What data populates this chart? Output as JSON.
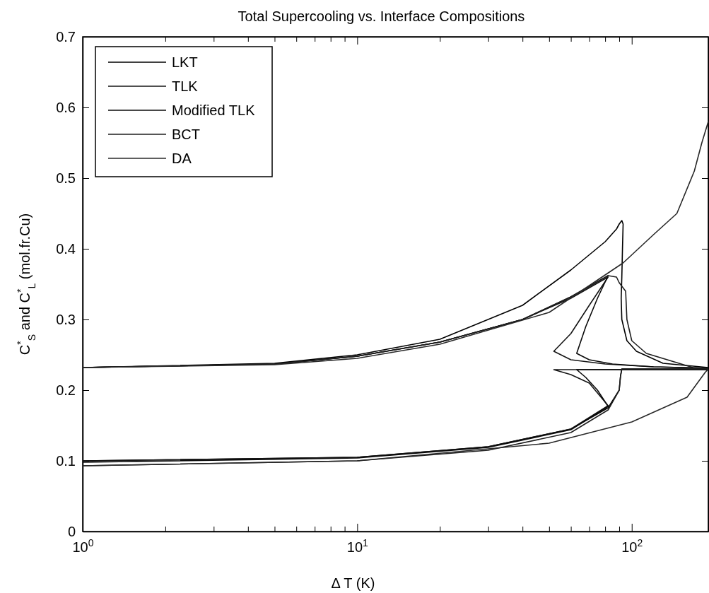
{
  "chart_data": {
    "type": "line",
    "title": "Total Supercooling vs. Interface Compositions",
    "xlabel": "Δ T (K)",
    "ylabel": "C$^{*}$$_{S}$ and C$^{*}$$_{L}$ (mol.fr.Cu)",
    "log": "x",
    "grid": false,
    "legend": "top left",
    "xlim": [
      1,
      190
    ],
    "ylim": [
      0,
      0.7
    ],
    "xticks": [
      {
        "value": 1,
        "label": "10$^{0}$"
      },
      {
        "value": 2,
        "label": null
      },
      {
        "value": 3,
        "label": null
      },
      {
        "value": 4,
        "label": null
      },
      {
        "value": 5,
        "label": null
      },
      {
        "value": 6,
        "label": null
      },
      {
        "value": 7,
        "label": null
      },
      {
        "value": 8,
        "label": null
      },
      {
        "value": 9,
        "label": null
      },
      {
        "value": 10,
        "label": "10$^{1}$"
      },
      {
        "value": 20,
        "label": null
      },
      {
        "value": 30,
        "label": null
      },
      {
        "value": 40,
        "label": null
      },
      {
        "value": 50,
        "label": null
      },
      {
        "value": 60,
        "label": null
      },
      {
        "value": 70,
        "label": null
      },
      {
        "value": 80,
        "label": null
      },
      {
        "value": 90,
        "label": null
      },
      {
        "value": 100,
        "label": "10$^{2}$"
      }
    ],
    "yticks": [
      0,
      0.1,
      0.2,
      0.3,
      0.4,
      0.5,
      0.6,
      0.7
    ],
    "series": [
      {
        "name": "LKT",
        "color": "#000000",
        "x": [
          1,
          5,
          10,
          20,
          40,
          60,
          80,
          88,
          90,
          92,
          93,
          92.5,
          92,
          91.5,
          92,
          96,
          104,
          130,
          190,
          null,
          1,
          10,
          30,
          60,
          82,
          90,
          91,
          92,
          190
        ],
        "values": [
          0.232,
          0.238,
          0.25,
          0.272,
          0.32,
          0.37,
          0.41,
          0.428,
          0.435,
          0.44,
          0.435,
          0.4,
          0.36,
          0.33,
          0.3,
          0.27,
          0.255,
          0.238,
          0.232,
          null,
          0.1,
          0.105,
          0.12,
          0.145,
          0.175,
          0.2,
          0.22,
          0.23,
          0.23
        ]
      },
      {
        "name": "TLK",
        "color": "#141414",
        "x": [
          1,
          5,
          10,
          20,
          40,
          60,
          82,
          70,
          60,
          52,
          60,
          80,
          120,
          190,
          null,
          1,
          10,
          30,
          60,
          82,
          70,
          60,
          52,
          190
        ],
        "values": [
          0.232,
          0.237,
          0.248,
          0.268,
          0.3,
          0.33,
          0.36,
          0.32,
          0.28,
          0.255,
          0.243,
          0.237,
          0.233,
          0.231,
          null,
          0.1,
          0.105,
          0.12,
          0.145,
          0.178,
          0.21,
          0.222,
          0.229,
          0.229
        ]
      },
      {
        "name": "Modified TLK",
        "color": "#0a0a0a",
        "x": [
          1,
          5,
          10,
          20,
          40,
          60,
          82,
          75,
          68,
          63,
          70,
          85,
          120,
          190,
          null,
          1,
          10,
          30,
          60,
          82,
          75,
          68,
          63,
          190
        ],
        "values": [
          0.232,
          0.237,
          0.248,
          0.268,
          0.3,
          0.332,
          0.362,
          0.33,
          0.29,
          0.252,
          0.243,
          0.237,
          0.233,
          0.231,
          null,
          0.098,
          0.104,
          0.119,
          0.144,
          0.177,
          0.2,
          0.218,
          0.229,
          0.229
        ]
      },
      {
        "name": "BCT",
        "color": "#1e1e1e",
        "x": [
          1,
          5,
          10,
          20,
          40,
          60,
          82,
          88,
          90,
          95,
          96,
          100,
          113,
          167,
          190,
          null,
          1,
          10,
          30,
          60,
          82,
          90,
          91,
          92,
          190
        ],
        "values": [
          0.232,
          0.237,
          0.248,
          0.268,
          0.3,
          0.332,
          0.362,
          0.36,
          0.352,
          0.34,
          0.3,
          0.27,
          0.252,
          0.232,
          0.231,
          null,
          0.093,
          0.1,
          0.115,
          0.14,
          0.172,
          0.2,
          0.22,
          0.23,
          0.23
        ]
      },
      {
        "name": "DA",
        "color": "#282828",
        "x": [
          1,
          5,
          10,
          20,
          50,
          93,
          120,
          146,
          169,
          180,
          190,
          null,
          1,
          10,
          50,
          100,
          159,
          185,
          190
        ],
        "values": [
          0.232,
          0.236,
          0.245,
          0.265,
          0.31,
          0.38,
          0.42,
          0.45,
          0.51,
          0.55,
          0.58,
          null,
          0.093,
          0.1,
          0.125,
          0.155,
          0.19,
          0.225,
          0.23
        ]
      }
    ]
  }
}
